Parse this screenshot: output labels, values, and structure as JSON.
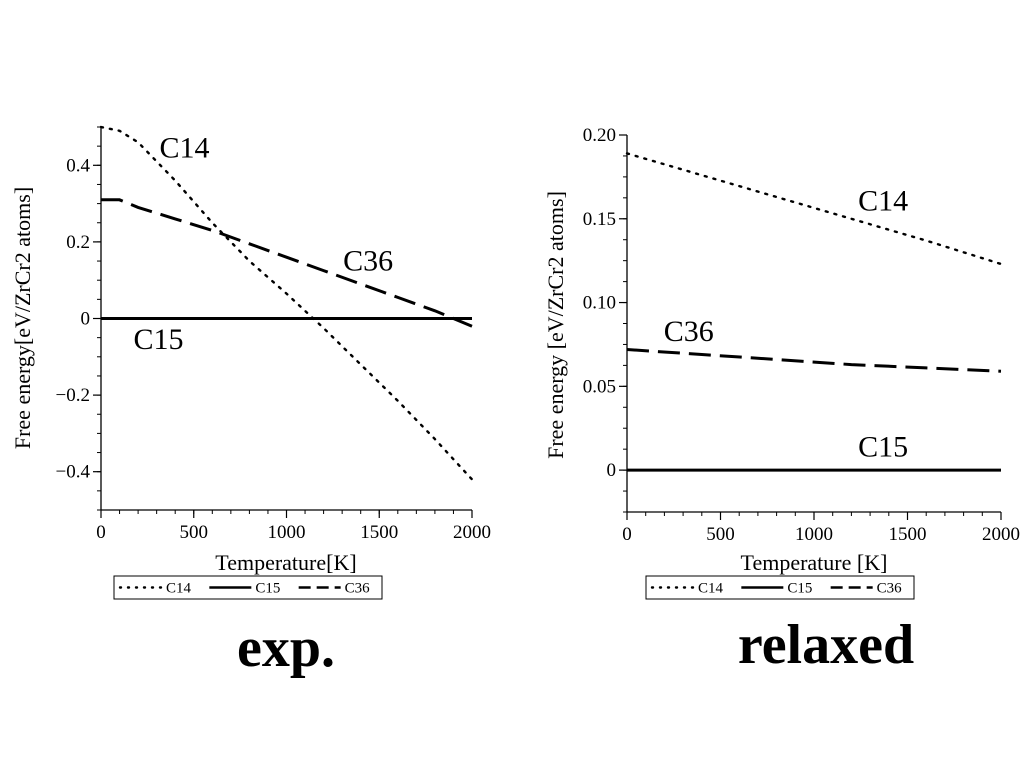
{
  "chart_data": [
    {
      "type": "line",
      "caption": "exp.",
      "xlabel": "Temperature[K]",
      "ylabel": "Free energy[eV/ZrCr2 atoms]",
      "xlim": [
        0,
        2000
      ],
      "ylim": [
        -0.5,
        0.5
      ],
      "xticks": [
        0,
        500,
        1000,
        1500,
        2000
      ],
      "xtick_labels": [
        "0",
        "500",
        "1000",
        "1500",
        "2000"
      ],
      "yticks": [
        0.4,
        0.2,
        0,
        -0.2,
        -0.4
      ],
      "ytick_labels": [
        "0.4",
        "0.2",
        "0",
        "−0.2",
        "−0.4"
      ],
      "grid": false,
      "legend": {
        "position": "bottom",
        "entries": [
          "C14",
          "C15",
          "C36"
        ]
      },
      "series": [
        {
          "name": "C14",
          "style": "dotted",
          "label": "C14",
          "label_at": [
            450,
            0.42
          ],
          "x": [
            0,
            100,
            200,
            400,
            600,
            800,
            1000,
            1200,
            1400,
            1600,
            1800,
            2000
          ],
          "y": [
            0.5,
            0.49,
            0.46,
            0.36,
            0.25,
            0.15,
            0.065,
            -0.025,
            -0.12,
            -0.215,
            -0.315,
            -0.42
          ]
        },
        {
          "name": "C15",
          "style": "solid",
          "label": "C15",
          "label_at": [
            310,
            -0.08
          ],
          "x": [
            0,
            2000
          ],
          "y": [
            0,
            0
          ]
        },
        {
          "name": "C36",
          "style": "dashed",
          "label": "C36",
          "label_at": [
            1440,
            0.125
          ],
          "x": [
            0,
            100,
            200,
            400,
            600,
            800,
            1000,
            1200,
            1400,
            1600,
            1800,
            2000
          ],
          "y": [
            0.31,
            0.31,
            0.29,
            0.26,
            0.23,
            0.195,
            0.16,
            0.125,
            0.09,
            0.055,
            0.02,
            -0.02
          ]
        }
      ]
    },
    {
      "type": "line",
      "caption": "relaxed",
      "xlabel": "Temperature [K]",
      "ylabel": "Free energy [eV/ZrCr2 atoms]",
      "xlim": [
        0,
        2000
      ],
      "ylim": [
        -0.025,
        0.2
      ],
      "xticks": [
        0,
        500,
        1000,
        1500,
        2000
      ],
      "xtick_labels": [
        "0",
        "500",
        "1000",
        "1500",
        "2000"
      ],
      "yticks": [
        0.2,
        0.15,
        0.1,
        0.05,
        0
      ],
      "ytick_labels": [
        "0.20",
        "0.15",
        "0.10",
        "0.05",
        "0"
      ],
      "grid": false,
      "legend": {
        "position": "bottom",
        "entries": [
          "C14",
          "C15",
          "C36"
        ]
      },
      "series": [
        {
          "name": "C14",
          "style": "dotted",
          "label": "C14",
          "label_at": [
            1370,
            0.155
          ],
          "x": [
            0,
            400,
            800,
            1200,
            1600,
            2000
          ],
          "y": [
            0.189,
            0.176,
            0.163,
            0.15,
            0.137,
            0.123
          ]
        },
        {
          "name": "C15",
          "style": "solid",
          "label": "C15",
          "label_at": [
            1370,
            0.008
          ],
          "x": [
            0,
            2000
          ],
          "y": [
            0,
            0
          ]
        },
        {
          "name": "C36",
          "style": "dashed",
          "label": "C36",
          "label_at": [
            330,
            0.077
          ],
          "x": [
            0,
            400,
            800,
            1200,
            1600,
            2000
          ],
          "y": [
            0.072,
            0.069,
            0.066,
            0.063,
            0.061,
            0.059
          ]
        }
      ]
    }
  ]
}
